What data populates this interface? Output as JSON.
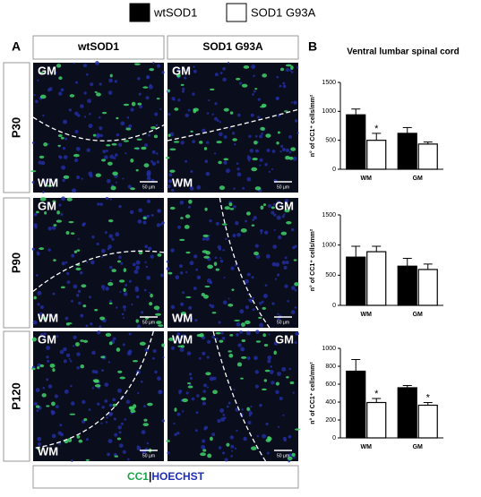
{
  "legend": [
    {
      "name": "wtSOD1",
      "color": "#000000"
    },
    {
      "name": "SOD1 G93A",
      "color": "#ffffff"
    }
  ],
  "panel_a": {
    "label": "A",
    "columns": [
      "wtSOD1",
      "SOD1 G93A"
    ],
    "rows": [
      "P30",
      "P90",
      "P120"
    ],
    "images": [
      [
        "GM",
        "WM",
        "50 µm"
      ],
      [
        "GM",
        "WM",
        "50 µm"
      ],
      [
        "GM",
        "WM",
        "50 µm"
      ],
      [
        "GM",
        "WM",
        "50 µm"
      ],
      [
        "GM",
        "WM",
        "50 µm"
      ],
      [
        "GM",
        "WM",
        "50 µm"
      ]
    ],
    "stain": [
      "CC1",
      "|",
      "HOECHST"
    ]
  },
  "panel_b": {
    "label": "B",
    "title": "Ventral lumbar spinal cord"
  },
  "chart_data": [
    {
      "type": "bar",
      "y_label": "n° of CC1⁺ cells/mm²",
      "categories": [
        "WM",
        "GM"
      ],
      "ylim": [
        0,
        1500
      ],
      "yticks": [
        0,
        500,
        1000,
        1500
      ],
      "series": [
        {
          "color": "#000000",
          "values": [
            940,
            620
          ],
          "errors": [
            100,
            100
          ],
          "significance": [
            null,
            null
          ]
        },
        {
          "color": "#ffffff",
          "values": [
            500,
            435
          ],
          "errors": [
            120,
            35
          ],
          "significance": [
            "*",
            null
          ]
        }
      ]
    },
    {
      "type": "bar",
      "y_label": "n° of CC1⁺ cells/mm²",
      "categories": [
        "WM",
        "GM"
      ],
      "ylim": [
        0,
        1500
      ],
      "yticks": [
        0,
        500,
        1000,
        1500
      ],
      "series": [
        {
          "color": "#000000",
          "values": [
            800,
            650
          ],
          "errors": [
            180,
            130
          ],
          "significance": [
            null,
            null
          ]
        },
        {
          "color": "#ffffff",
          "values": [
            890,
            595
          ],
          "errors": [
            90,
            90
          ],
          "significance": [
            null,
            null
          ]
        }
      ]
    },
    {
      "type": "bar",
      "y_label": "n° of CC1⁺ cells/mm²",
      "categories": [
        "WM",
        "GM"
      ],
      "ylim": [
        0,
        1000
      ],
      "yticks": [
        0,
        200,
        400,
        600,
        800,
        1000
      ],
      "series": [
        {
          "color": "#000000",
          "values": [
            745,
            560
          ],
          "errors": [
            130,
            25
          ],
          "significance": [
            null,
            null
          ]
        },
        {
          "color": "#ffffff",
          "values": [
            395,
            365
          ],
          "errors": [
            45,
            30
          ],
          "significance": [
            "*",
            "*"
          ]
        }
      ]
    }
  ]
}
